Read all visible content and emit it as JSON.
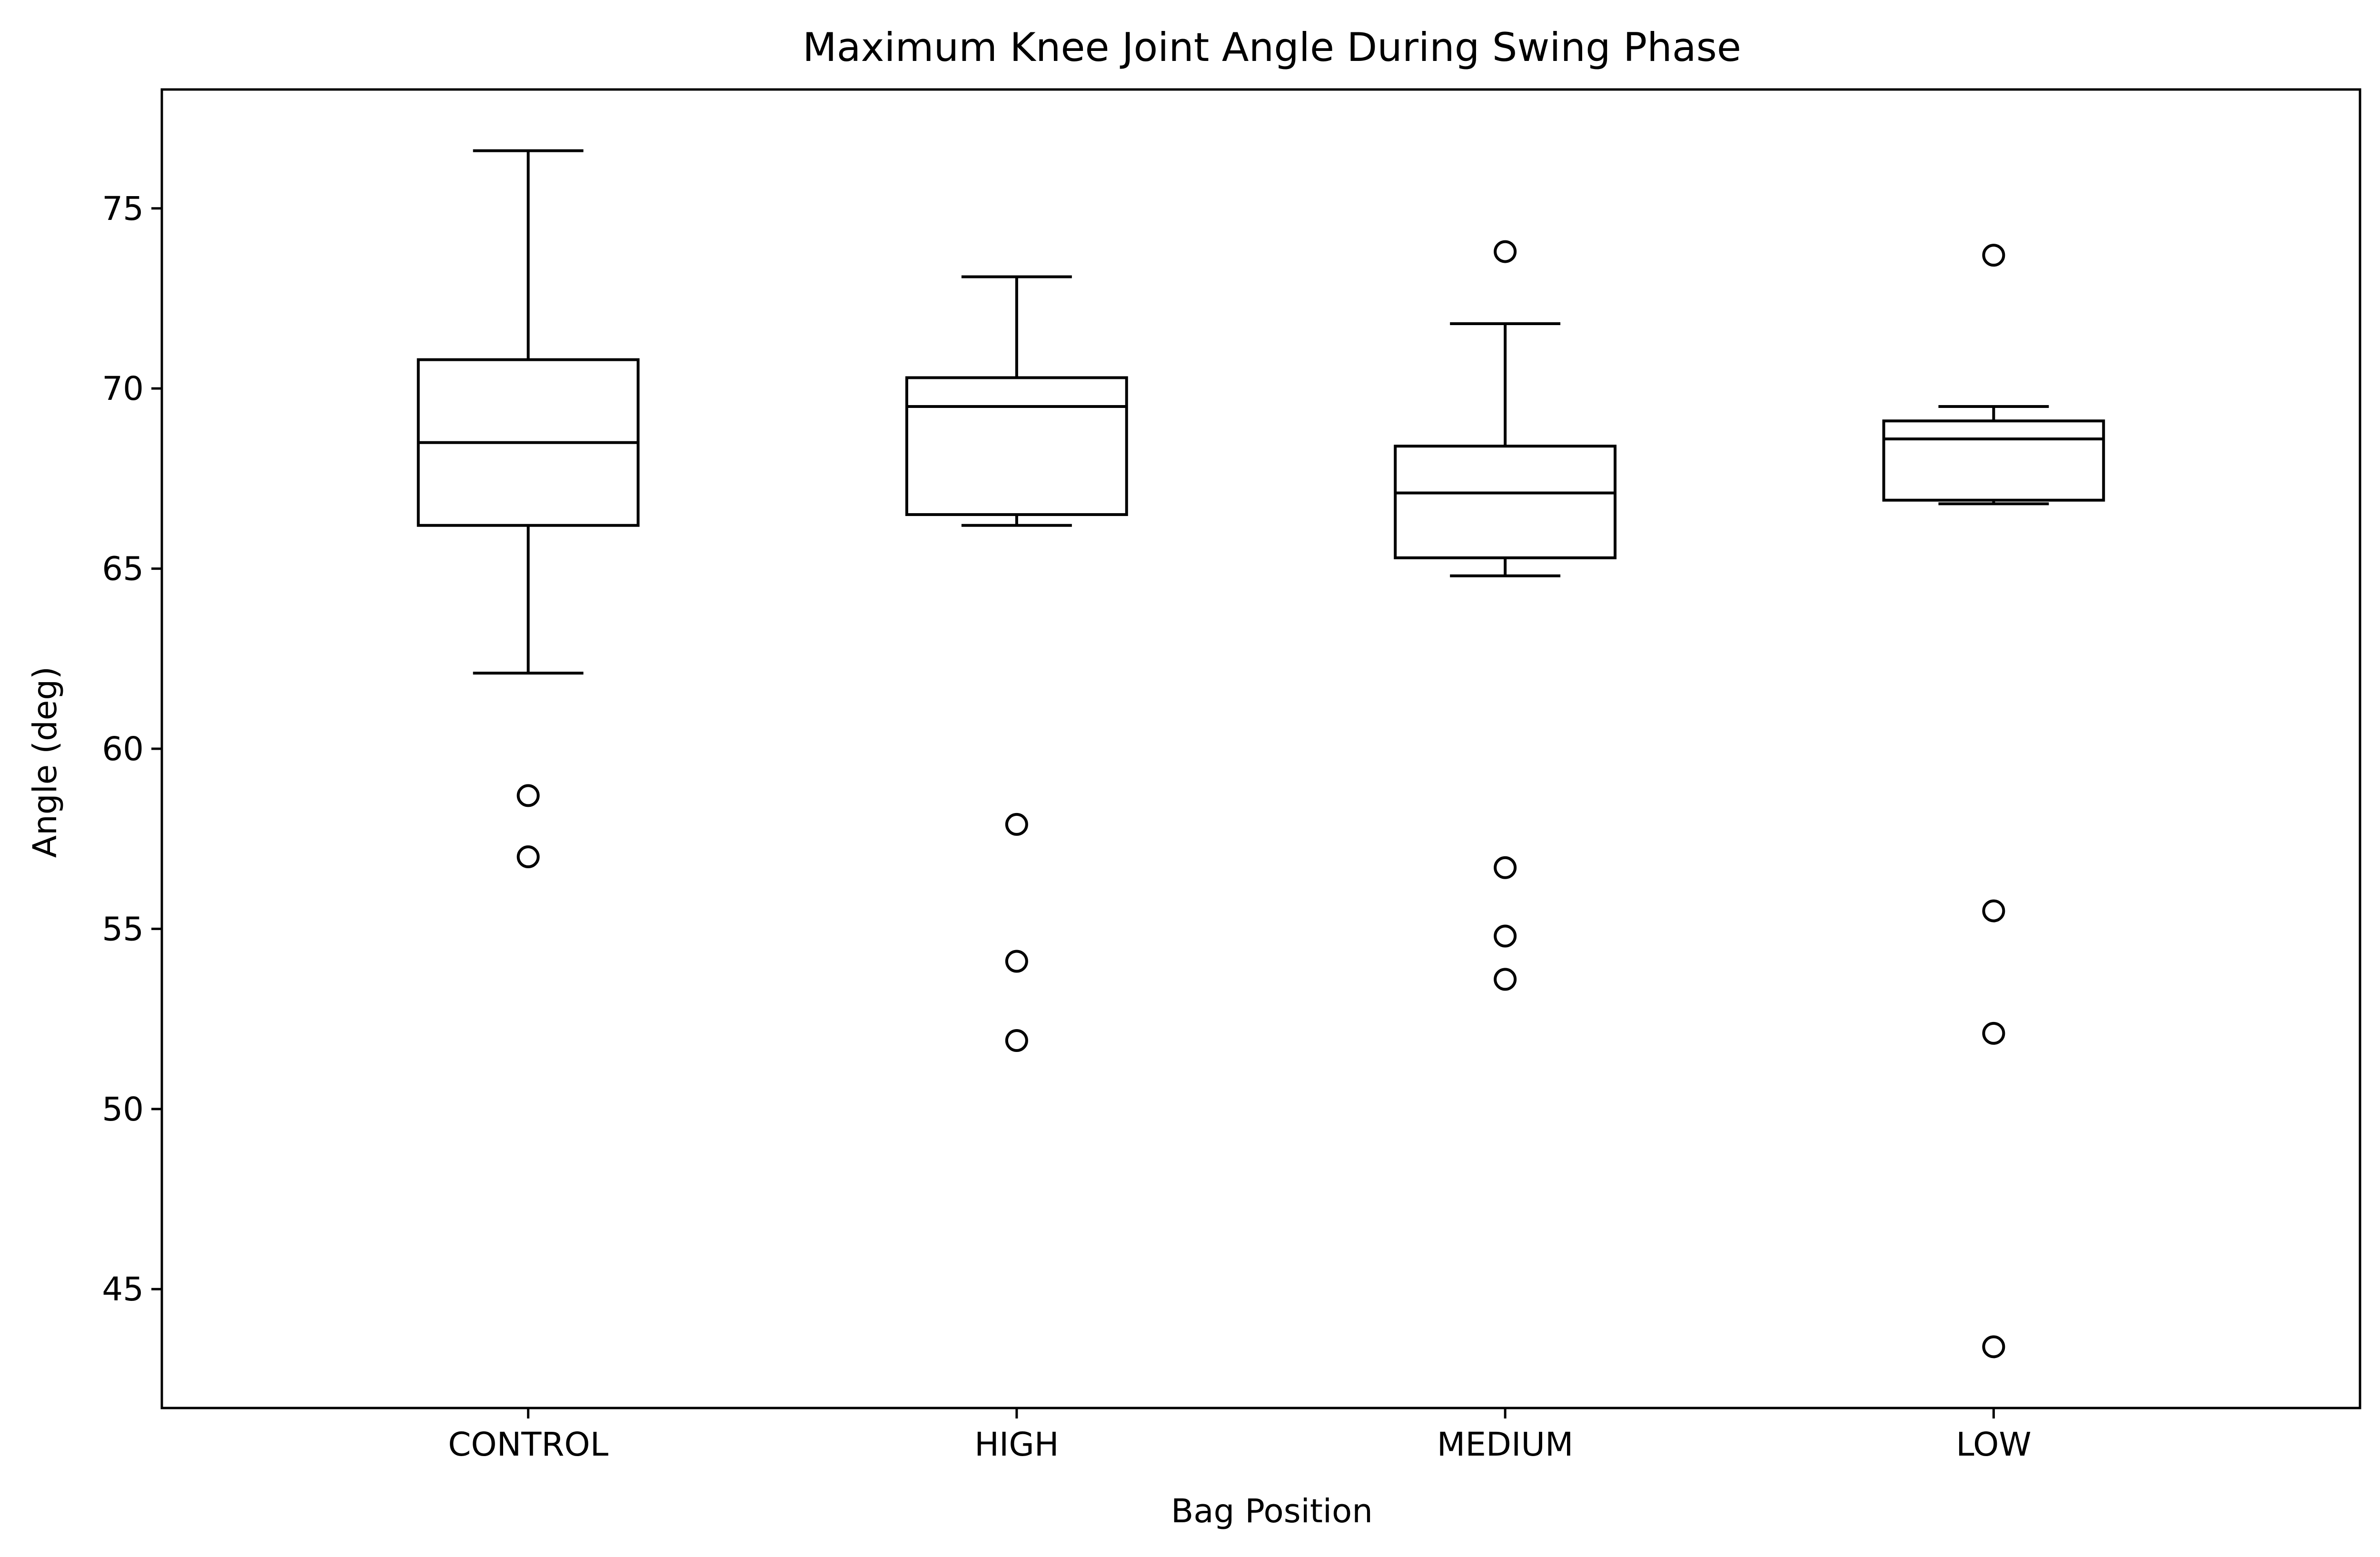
{
  "chart_data": {
    "type": "box",
    "title": "Maximum Knee Joint Angle During Swing Phase",
    "xlabel": "Bag Position",
    "ylabel": "Angle (deg)",
    "ylim": [
      41.7,
      78.3
    ],
    "yticks": [
      45,
      50,
      55,
      60,
      65,
      70,
      75
    ],
    "grid": false,
    "categories": [
      "CONTROL",
      "HIGH",
      "MEDIUM",
      "LOW"
    ],
    "series": [
      {
        "category": "CONTROL",
        "whisker_low": 62.1,
        "q1": 66.2,
        "median": 68.5,
        "q3": 70.8,
        "whisker_high": 76.6,
        "outliers": [
          58.7,
          57.0
        ]
      },
      {
        "category": "HIGH",
        "whisker_low": 66.2,
        "q1": 66.5,
        "median": 69.5,
        "q3": 70.3,
        "whisker_high": 73.1,
        "outliers": [
          57.9,
          54.1,
          51.9
        ]
      },
      {
        "category": "MEDIUM",
        "whisker_low": 64.8,
        "q1": 65.3,
        "median": 67.1,
        "q3": 68.4,
        "whisker_high": 71.8,
        "outliers": [
          73.8,
          56.7,
          54.8,
          53.6
        ]
      },
      {
        "category": "LOW",
        "whisker_low": 66.8,
        "q1": 66.9,
        "median": 68.6,
        "q3": 69.1,
        "whisker_high": 69.5,
        "outliers": [
          73.7,
          55.5,
          52.1,
          43.4
        ]
      }
    ]
  }
}
